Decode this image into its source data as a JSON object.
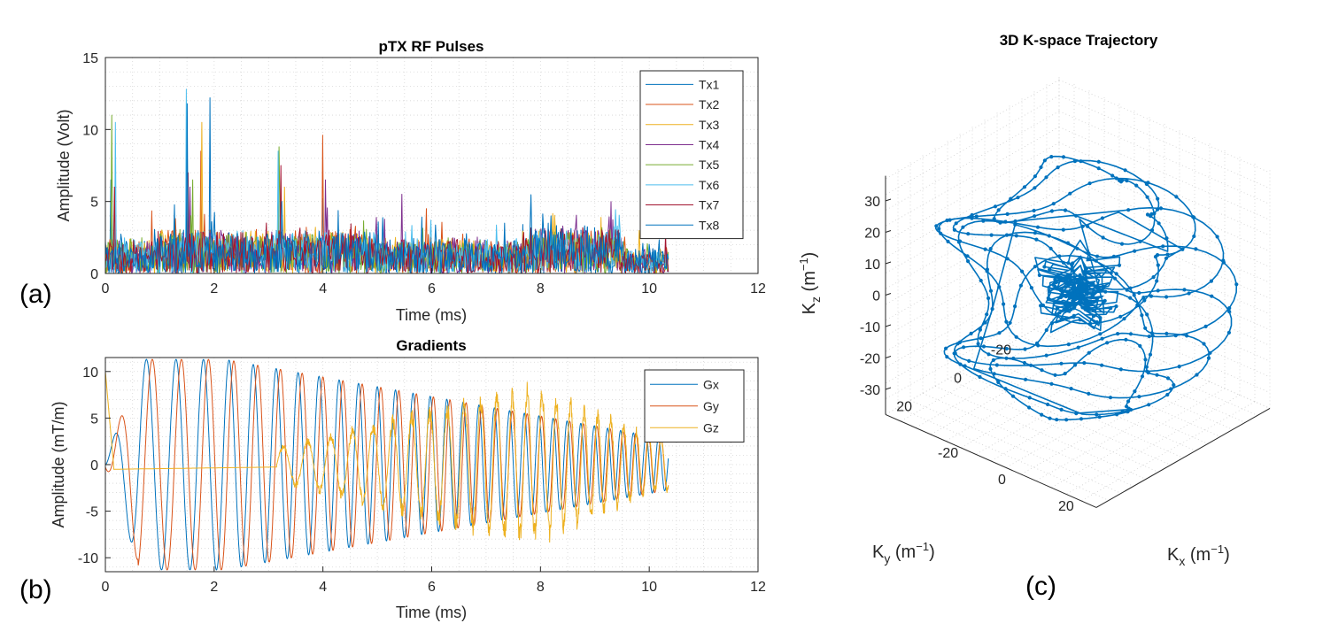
{
  "panel_labels": {
    "a": "(a)",
    "b": "(b)",
    "c": "(c)"
  },
  "chart_data": [
    {
      "id": "rf",
      "type": "line",
      "title": "pTX RF Pulses",
      "xlabel": "Time (ms)",
      "ylabel": "Amplitude (Volt)",
      "xlim": [
        0,
        12
      ],
      "ylim": [
        0,
        15
      ],
      "xticks": [
        "0",
        "2",
        "4",
        "6",
        "8",
        "10",
        "12"
      ],
      "yticks": [
        "0",
        "5",
        "10",
        "15"
      ],
      "grid": true,
      "legend_position": "top-right",
      "duration_ms": 10.35,
      "series": [
        {
          "name": "Tx1",
          "color": "#0072BD",
          "peaks": [
            [
              1.92,
              12.2
            ],
            [
              0.1,
              6.5
            ],
            [
              4.0,
              5.2
            ]
          ]
        },
        {
          "name": "Tx2",
          "color": "#D95319",
          "peaks": [
            [
              4.0,
              9.6
            ],
            [
              1.75,
              8.5
            ],
            [
              5.9,
              4.5
            ]
          ]
        },
        {
          "name": "Tx3",
          "color": "#EDB120",
          "peaks": [
            [
              1.5,
              9.0
            ],
            [
              1.78,
              10.5
            ],
            [
              3.3,
              6.0
            ]
          ]
        },
        {
          "name": "Tx4",
          "color": "#7E2F8E",
          "peaks": [
            [
              9.3,
              5.0
            ],
            [
              4.05,
              6.5
            ],
            [
              5.45,
              5.5
            ],
            [
              1.55,
              6.0
            ]
          ]
        },
        {
          "name": "Tx5",
          "color": "#77AC30",
          "peaks": [
            [
              0.12,
              11.0
            ],
            [
              3.2,
              8.8
            ],
            [
              1.6,
              6.5
            ]
          ]
        },
        {
          "name": "Tx6",
          "color": "#4DBEEE",
          "peaks": [
            [
              1.48,
              12.8
            ],
            [
              0.18,
              10.5
            ],
            [
              3.18,
              8.5
            ]
          ]
        },
        {
          "name": "Tx7",
          "color": "#A2142F",
          "peaks": [
            [
              1.52,
              7.0
            ],
            [
              3.22,
              7.5
            ],
            [
              0.16,
              6.0
            ]
          ]
        },
        {
          "name": "Tx8",
          "color": "#0072BD",
          "peaks": [
            [
              1.5,
              11.8
            ],
            [
              3.25,
              5.0
            ],
            [
              8.2,
              4.0
            ]
          ]
        }
      ]
    },
    {
      "id": "grad",
      "type": "line",
      "title": "Gradients",
      "xlabel": "Time (ms)",
      "ylabel": "Amplitude (mT/m)",
      "xlim": [
        0,
        12
      ],
      "ylim": [
        -11.5,
        11.5
      ],
      "xticks": [
        "0",
        "2",
        "4",
        "6",
        "8",
        "10",
        "12"
      ],
      "yticks": [
        "10",
        "5",
        "0",
        "-5",
        "-10"
      ],
      "grid": true,
      "legend_position": "top-right",
      "duration_ms": 10.35,
      "series": [
        {
          "name": "Gx",
          "color": "#0072BD",
          "peak_amplitude": 11.5
        },
        {
          "name": "Gy",
          "color": "#D95319",
          "peak_amplitude": 11.3
        },
        {
          "name": "Gz",
          "color": "#EDB120",
          "peak_amplitude": 9.0
        }
      ]
    },
    {
      "id": "kspace",
      "type": "scatter",
      "title": "3D K-space Trajectory",
      "xlabel": "Kx (m-1)",
      "ylabel": "Ky (m-1)",
      "zlabel": "Kz (m-1)",
      "xticks": [
        "20",
        "0",
        "-20"
      ],
      "yticks": [
        "20",
        "0",
        "-20"
      ],
      "zticks": [
        "30",
        "20",
        "10",
        "0",
        "-10",
        "-20",
        "-30"
      ],
      "xlim": [
        -35,
        35
      ],
      "ylim": [
        -35,
        35
      ],
      "zlim": [
        -38,
        38
      ],
      "grid": true,
      "trajectory": "stack of spiral rings with dense center",
      "series": [
        {
          "name": "trajectory",
          "color": "#0072BD"
        }
      ]
    }
  ]
}
